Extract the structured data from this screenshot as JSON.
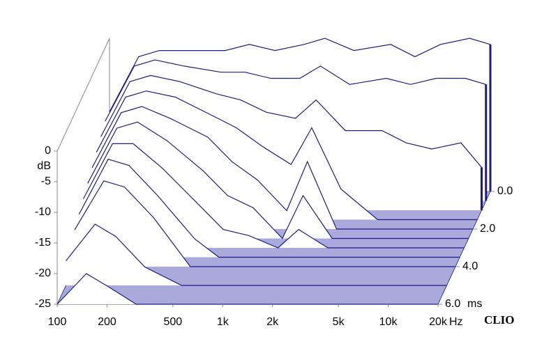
{
  "chart_data": {
    "type": "waterfall",
    "x": [
      100,
      150,
      200,
      300,
      500,
      700,
      1000,
      1500,
      2000,
      3000,
      5000,
      7000,
      10000,
      15000,
      20000
    ],
    "xlim": [
      100,
      20000
    ],
    "xticks": [
      100,
      200,
      500,
      {
        "value": 1000,
        "label": "1k"
      },
      {
        "value": 2000,
        "label": "2k"
      },
      {
        "value": 5000,
        "label": "5k"
      },
      {
        "value": 10000,
        "label": "10k"
      },
      {
        "value": 20000,
        "label": "20k"
      }
    ],
    "xlog": true,
    "x_unit": "Hz",
    "ylim": [
      -25,
      0
    ],
    "yticks": [
      0,
      -5,
      -10,
      -15,
      -20,
      -25
    ],
    "y_unit": "dB",
    "zlim": [
      0,
      6
    ],
    "zticks": [
      {
        "value": 0,
        "label": "0.0"
      },
      {
        "value": 2,
        "label": "2.0"
      },
      {
        "value": 4,
        "label": "4.0"
      },
      {
        "value": 6,
        "label": "6.0"
      }
    ],
    "z_unit": "ms",
    "color": "#1c1c80",
    "floor_color": "#a9a9dc",
    "brand": "CLIO",
    "slices": [
      {
        "time": 0,
        "values": [
          -12,
          -3,
          -2,
          -2,
          -2,
          -1,
          -2,
          -1,
          0,
          -2,
          -1,
          -3,
          -1,
          0,
          -1
        ]
      },
      {
        "time": 0.5,
        "values": [
          -12,
          -3,
          -2,
          -3,
          -4,
          -4,
          -5,
          -5,
          -3,
          -6,
          -5,
          -6,
          -5,
          -5,
          -6
        ]
      },
      {
        "time": 1,
        "values": [
          -13,
          -4,
          -3,
          -4,
          -6,
          -7,
          -9,
          -10,
          -7,
          -12,
          -12,
          -14,
          -15,
          -14,
          -18
        ]
      },
      {
        "time": 1.5,
        "values": [
          -14,
          -5,
          -4,
          -5,
          -8,
          -10,
          -13,
          -16,
          -10,
          -20,
          -25,
          -25,
          -25,
          -25,
          -25
        ]
      },
      {
        "time": 2,
        "values": [
          -15,
          -6,
          -5,
          -7,
          -10,
          -14,
          -17,
          -22,
          -14,
          -25,
          -25,
          -25,
          -25,
          -25,
          -25
        ]
      },
      {
        "time": 2.5,
        "values": [
          -16,
          -7,
          -6,
          -9,
          -14,
          -18,
          -20,
          -25,
          -18,
          -25,
          -25,
          -25,
          -25,
          -25,
          -25
        ]
      },
      {
        "time": 3,
        "values": [
          -17,
          -8,
          -8,
          -12,
          -18,
          -22,
          -23,
          -25,
          -22,
          -25,
          -25,
          -25,
          -25,
          -25,
          -25
        ]
      },
      {
        "time": 3.5,
        "values": [
          -18,
          -9,
          -10,
          -15,
          -22,
          -25,
          -25,
          -25,
          -25,
          -25,
          -25,
          -25,
          -25,
          -25,
          -25
        ]
      },
      {
        "time": 4,
        "values": [
          -19,
          -11,
          -12,
          -17,
          -25,
          -25,
          -25,
          -25,
          -25,
          -25,
          -25,
          -25,
          -25,
          -25,
          -25
        ]
      },
      {
        "time": 5,
        "values": [
          -21,
          -15,
          -17,
          -22,
          -25,
          -25,
          -25,
          -25,
          -25,
          -25,
          -25,
          -25,
          -25,
          -25,
          -25
        ]
      },
      {
        "time": 6,
        "values": [
          -25,
          -20,
          -22,
          -25,
          -25,
          -25,
          -25,
          -25,
          -25,
          -25,
          -25,
          -25,
          -25,
          -25,
          -25
        ]
      }
    ]
  }
}
